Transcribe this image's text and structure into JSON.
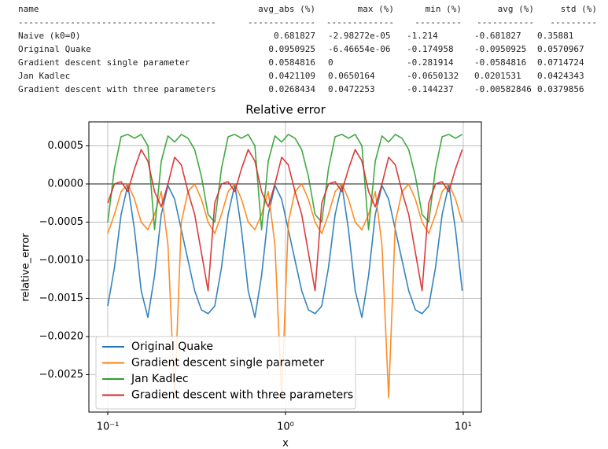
{
  "table": {
    "columns": [
      "name",
      "avg_abs (%)",
      "max (%)",
      "min (%)",
      "avg (%)",
      "std (%)"
    ],
    "separators": [
      "--------------------------------------",
      "-------------",
      "-------------",
      "---------",
      "-----------",
      "---------"
    ],
    "rows": [
      [
        "Naive (k0=0)",
        "0.681827",
        "-2.98272e-05",
        "-1.214",
        "-0.681827",
        "0.35881"
      ],
      [
        "Original Quake",
        "0.0950925",
        "-6.46654e-06",
        "-0.174958",
        "-0.0950925",
        "0.0570967"
      ],
      [
        "Gradient descent single parameter",
        "0.0584816",
        "0",
        "-0.281914",
        "-0.0584816",
        "0.0714724"
      ],
      [
        "Jan Kadlec",
        "0.0421109",
        "0.0650164",
        "-0.0650132",
        "0.0201531",
        "0.0424343"
      ],
      [
        "Gradient descent with three parameters",
        "0.0268434",
        "0.0472253",
        "-0.144237",
        "-0.00582846",
        "0.0379856"
      ]
    ]
  },
  "chart_data": {
    "type": "line",
    "title": "Relative error",
    "x_label": "x",
    "y_label": "relative_error",
    "x_scale": "log",
    "grid": true,
    "legend": "lower left",
    "zero_line": true,
    "xlim": [
      0.0783,
      12.65
    ],
    "ylim": [
      -0.00299,
      0.000814
    ],
    "xticks": [
      {
        "value": 0.1,
        "label": "10⁻¹"
      },
      {
        "value": 1,
        "label": "10⁰"
      },
      {
        "value": 10,
        "label": "10¹"
      }
    ],
    "yticks": [
      {
        "value": 0.0005,
        "label": "0.0005"
      },
      {
        "value": 0,
        "label": "0.0000"
      },
      {
        "value": -0.0005,
        "label": "−0.0005"
      },
      {
        "value": -0.001,
        "label": "−0.0010"
      },
      {
        "value": -0.0015,
        "label": "−0.0015"
      },
      {
        "value": -0.002,
        "label": "−0.0020"
      },
      {
        "value": -0.0025,
        "label": "−0.0025"
      }
    ],
    "x": [
      0.1,
      0.109,
      0.1189,
      0.1297,
      0.1414,
      0.1542,
      0.1682,
      0.1834,
      0.2,
      0.2181,
      0.2378,
      0.2594,
      0.2828,
      0.3084,
      0.3364,
      0.3668,
      0.4,
      0.4362,
      0.4757,
      0.5187,
      0.5657,
      0.6169,
      0.6727,
      0.7336,
      0.8,
      0.8724,
      0.9514,
      1.0375,
      1.1314,
      1.2338,
      1.3454,
      1.4672,
      1.6,
      1.7448,
      1.9027,
      2.0749,
      2.2627,
      2.4675,
      2.6909,
      2.9344,
      3.2,
      3.4896,
      3.8055,
      4.1499,
      4.5255,
      4.9351,
      5.3817,
      5.8688,
      6.4,
      6.9792,
      7.611,
      8.2998,
      9.051,
      9.8701
    ],
    "series": [
      {
        "name": "Original Quake",
        "color": "#1f77b4",
        "values": [
          -0.0016,
          -0.0011,
          -0.0004,
          -1e-05,
          -0.0006,
          -0.0014,
          -0.00175,
          -0.0012,
          -0.0004,
          -2e-05,
          -0.0002,
          -0.0006,
          -0.001,
          -0.0014,
          -0.00165,
          -0.0017,
          -0.0016,
          -0.0011,
          -0.0004,
          -1e-05,
          -0.0006,
          -0.0014,
          -0.00175,
          -0.0012,
          -0.0004,
          -2e-05,
          -0.0002,
          -0.0006,
          -0.001,
          -0.0014,
          -0.00165,
          -0.0017,
          -0.0016,
          -0.0011,
          -0.0004,
          -1e-05,
          -0.0006,
          -0.0014,
          -0.00175,
          -0.0012,
          -0.0004,
          -2e-05,
          -0.0002,
          -0.0006,
          -0.001,
          -0.0014,
          -0.00165,
          -0.0017,
          -0.0016,
          -0.0011,
          -0.0004,
          -1e-05,
          -0.0006,
          -0.0014
        ]
      },
      {
        "name": "Gradient descent single parameter",
        "color": "#ff7f0e",
        "values": [
          -0.00065,
          -0.0004,
          -0.0001,
          0.0,
          -0.0002,
          -0.0005,
          -0.0006,
          -0.0004,
          -0.0001,
          -0.0008,
          -0.0028,
          -0.0005,
          -0.0001,
          0.0,
          -0.0002,
          -0.0005,
          -0.00065,
          -0.0004,
          -0.0001,
          0.0,
          -0.0002,
          -0.0005,
          -0.0006,
          -0.0004,
          -0.0001,
          -0.0008,
          -0.0028,
          -0.0005,
          -0.0001,
          0.0,
          -0.0002,
          -0.0005,
          -0.00065,
          -0.0004,
          -0.0001,
          0.0,
          -0.0002,
          -0.0005,
          -0.0006,
          -0.0004,
          -0.0001,
          -0.0008,
          -0.0028,
          -0.0005,
          -0.0001,
          0.0,
          -0.0002,
          -0.0005,
          -0.00065,
          -0.0004,
          -0.0001,
          0.0,
          -0.0002,
          -0.0005
        ]
      },
      {
        "name": "Jan Kadlec",
        "color": "#2ca02c",
        "values": [
          -0.0005,
          0.0002,
          0.00062,
          0.00065,
          0.0006,
          0.00065,
          0.0005,
          -0.0006,
          0.0003,
          0.00063,
          0.00055,
          0.00065,
          0.0006,
          0.00045,
          0.0001,
          -0.0004,
          -0.0005,
          0.0002,
          0.00062,
          0.00065,
          0.0006,
          0.00065,
          0.0005,
          -0.0006,
          0.0003,
          0.00063,
          0.00055,
          0.00065,
          0.0006,
          0.00045,
          0.0001,
          -0.0004,
          -0.0005,
          0.0002,
          0.00062,
          0.00065,
          0.0006,
          0.00065,
          0.0005,
          -0.0006,
          0.0003,
          0.00063,
          0.00055,
          0.00065,
          0.0006,
          0.00045,
          0.0001,
          -0.0004,
          -0.0005,
          0.0002,
          0.00062,
          0.00065,
          0.0006,
          0.00065
        ]
      },
      {
        "name": "Gradient descent with three parameters",
        "color": "#d62728",
        "values": [
          -0.00025,
          0.0,
          3e-05,
          -0.0001,
          0.0002,
          0.00045,
          0.0003,
          -0.0001,
          -0.0003,
          0.0,
          0.00035,
          0.00025,
          -0.0001,
          -0.0004,
          -0.0009,
          -0.0014,
          -0.00025,
          0.0,
          3e-05,
          -0.0001,
          0.0002,
          0.00045,
          0.0003,
          -0.0001,
          -0.0003,
          0.0,
          0.00035,
          0.00025,
          -0.0001,
          -0.0004,
          -0.0009,
          -0.0014,
          -0.00025,
          0.0,
          3e-05,
          -0.0001,
          0.0002,
          0.00045,
          0.0003,
          -0.0001,
          -0.0003,
          0.0,
          0.00035,
          0.00025,
          -0.0001,
          -0.0004,
          -0.0009,
          -0.0014,
          -0.00025,
          0.0,
          3e-05,
          -0.0001,
          0.0002,
          0.00045
        ]
      }
    ]
  }
}
